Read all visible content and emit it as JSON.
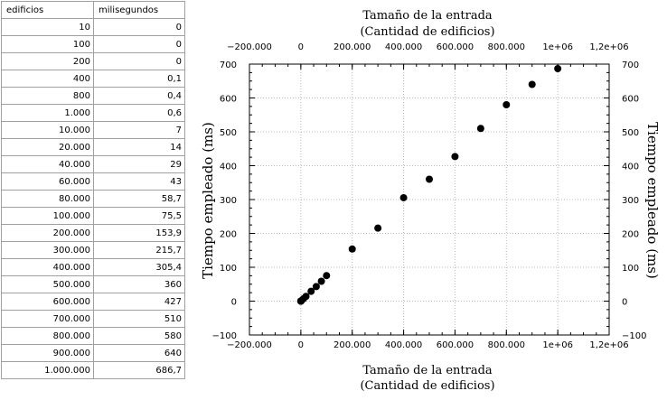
{
  "table": {
    "headers": [
      "edificios",
      "milisegundos"
    ],
    "rows": [
      [
        "10",
        "0"
      ],
      [
        "100",
        "0"
      ],
      [
        "200",
        "0"
      ],
      [
        "400",
        "0,1"
      ],
      [
        "800",
        "0,4"
      ],
      [
        "1.000",
        "0,6"
      ],
      [
        "10.000",
        "7"
      ],
      [
        "20.000",
        "14"
      ],
      [
        "40.000",
        "29"
      ],
      [
        "60.000",
        "43"
      ],
      [
        "80.000",
        "58,7"
      ],
      [
        "100.000",
        "75,5"
      ],
      [
        "200.000",
        "153,9"
      ],
      [
        "300.000",
        "215,7"
      ],
      [
        "400.000",
        "305,4"
      ],
      [
        "500.000",
        "360"
      ],
      [
        "600.000",
        "427"
      ],
      [
        "700.000",
        "510"
      ],
      [
        "800.000",
        "580"
      ],
      [
        "900.000",
        "640"
      ],
      [
        "1.000.000",
        "686,7"
      ]
    ]
  },
  "chart_data": {
    "type": "scatter",
    "title": "Tamaño de la entrada",
    "subtitle": "(Cantidad de edificios)",
    "xlabel": "Tamaño de la entrada",
    "xlabel2": "(Cantidad de edificios)",
    "ylabel": "Tiempo empleado (ms)",
    "xlim": [
      -200000,
      1200000
    ],
    "ylim": [
      -100,
      700
    ],
    "x_ticks": [
      -200000,
      0,
      200000,
      400000,
      600000,
      800000,
      1000000,
      1200000
    ],
    "x_tick_labels": [
      "−200.000",
      "0",
      "200.000",
      "400.000",
      "600.000",
      "800.000",
      "1e+06",
      "1,2e+06"
    ],
    "y_ticks": [
      -100,
      0,
      100,
      200,
      300,
      400,
      500,
      600,
      700
    ],
    "y_tick_labels": [
      "−100",
      "0",
      "100",
      "200",
      "300",
      "400",
      "500",
      "600",
      "700"
    ],
    "grid": true,
    "marker_color": "#000000",
    "x": [
      10,
      100,
      200,
      400,
      800,
      1000,
      10000,
      20000,
      40000,
      60000,
      80000,
      100000,
      200000,
      300000,
      400000,
      500000,
      600000,
      700000,
      800000,
      900000,
      1000000
    ],
    "y": [
      0,
      0,
      0,
      0.1,
      0.4,
      0.6,
      7,
      14,
      29,
      43,
      58.7,
      75.5,
      153.9,
      215.7,
      305.4,
      360,
      427,
      510,
      580,
      640,
      686.7
    ]
  }
}
